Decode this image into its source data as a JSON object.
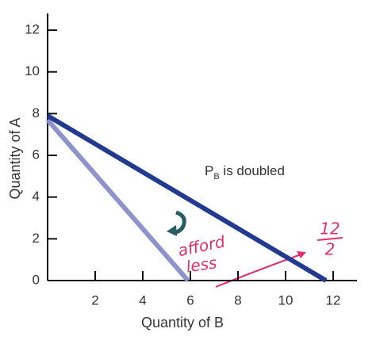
{
  "chart_data": {
    "type": "line",
    "x_label": "Quantity of B",
    "y_label": "Quantity of A",
    "xlim": [
      0,
      13
    ],
    "ylim": [
      0,
      12.8
    ],
    "xticks": [
      2,
      4,
      6,
      8,
      10,
      12
    ],
    "yticks": [
      0,
      2,
      4,
      6,
      8,
      10,
      12
    ],
    "series": [
      {
        "color": "#223a8f",
        "x": [
          0,
          11.7
        ],
        "values": [
          7.9,
          0
        ]
      },
      {
        "color": "#8f93cc",
        "x": [
          0,
          5.9
        ],
        "values": [
          7.7,
          0
        ]
      }
    ],
    "annotations": {
      "label_main": "P",
      "label_sub": "B",
      "label_rest": " is doubled",
      "note_1": "afford",
      "note_2": "less",
      "fraction_top": "12",
      "fraction_bottom": "2"
    }
  }
}
